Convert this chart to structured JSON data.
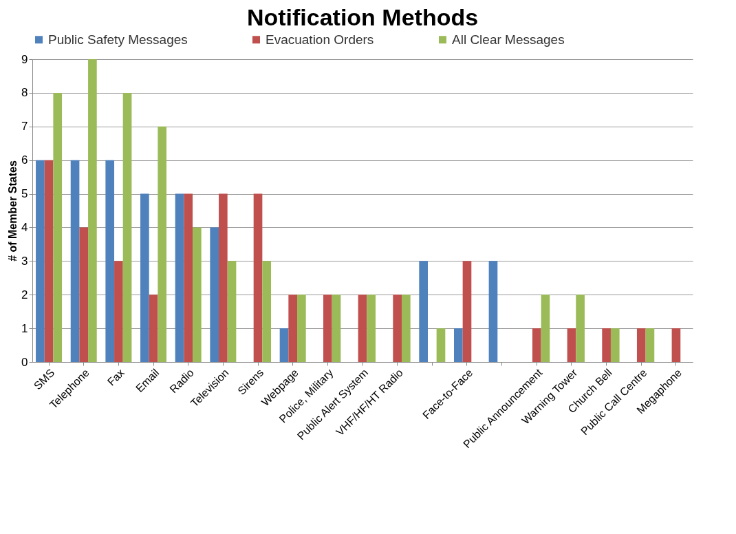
{
  "chart_data": {
    "type": "bar",
    "title": "Notification Methods",
    "ylabel": "# of Member States",
    "categories": [
      "SMS",
      "Telephone",
      "Fax",
      "Email",
      "Radio",
      "Television",
      "Sirens",
      "Webpage",
      "Police, Military",
      "Public Alert System",
      "VHF/HF/HT Radio",
      null,
      "Face-to-Face",
      null,
      "Public Announcement",
      "Warning Tower",
      "Church Bell",
      "Public Call Centre",
      "Megaphone"
    ],
    "series": [
      {
        "name": "Public Safety Messages",
        "color": "#4f81bd",
        "values": [
          6,
          6,
          6,
          5,
          5,
          4,
          0,
          1,
          0,
          0,
          0,
          3,
          1,
          3,
          0,
          0,
          0,
          0,
          0
        ]
      },
      {
        "name": "Evacuation Orders",
        "color": "#c0504d",
        "values": [
          6,
          4,
          3,
          2,
          5,
          5,
          5,
          2,
          2,
          2,
          2,
          0,
          3,
          0,
          1,
          1,
          1,
          1,
          1
        ]
      },
      {
        "name": "All Clear Messages",
        "color": "#9bbb59",
        "values": [
          8,
          9,
          8,
          7,
          4,
          3,
          3,
          2,
          2,
          2,
          2,
          1,
          0,
          0,
          2,
          2,
          1,
          1,
          0
        ]
      }
    ],
    "ylim": [
      0,
      9
    ],
    "yticks": [
      0,
      1,
      2,
      3,
      4,
      5,
      6,
      7,
      8,
      9
    ],
    "grid": "y",
    "legend": "top"
  }
}
